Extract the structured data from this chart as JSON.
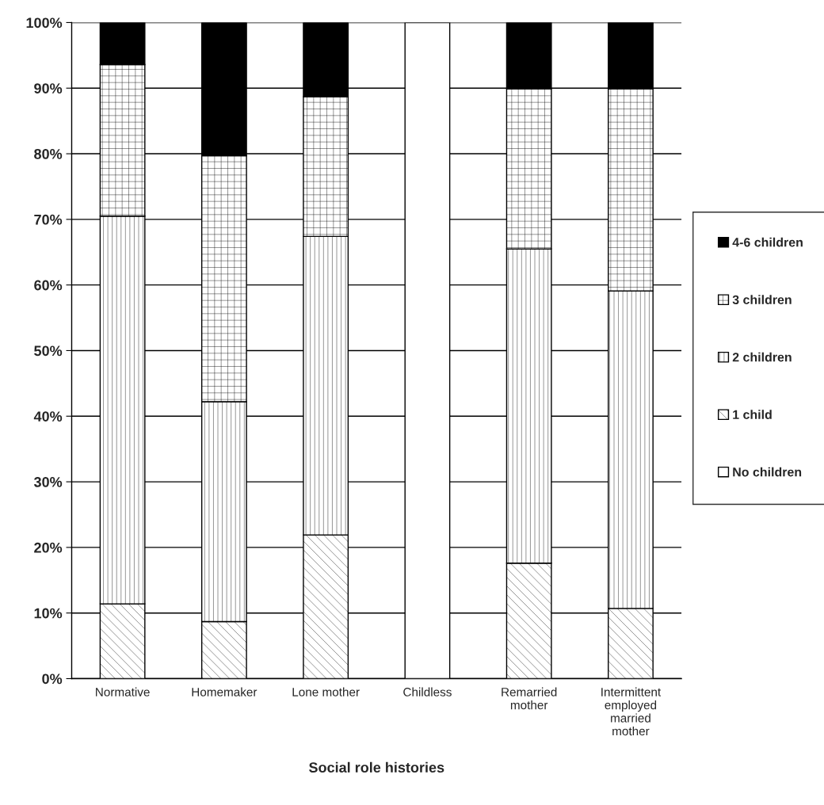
{
  "chart_data": {
    "type": "bar",
    "stacked": true,
    "xlabel": "Social role histories",
    "categories": [
      "Normative",
      "Homemaker",
      "Lone mother",
      "Childless",
      "Remarried\nmother",
      "Intermittent\nemployed\nmarried\nmother"
    ],
    "series": [
      {
        "name": "No children",
        "color": "#ffffff",
        "values": [
          0,
          0,
          0,
          100,
          0,
          0
        ]
      },
      {
        "name": "1 child",
        "color": "#000000",
        "values": [
          11.4,
          8.7,
          21.9,
          0,
          17.6,
          10.7
        ]
      },
      {
        "name": "2 children",
        "color": "#000000",
        "values": [
          59.1,
          33.5,
          45.5,
          0,
          47.9,
          48.4
        ]
      },
      {
        "name": "3 children",
        "color": "#000000",
        "values": [
          23.1,
          37.5,
          21.3,
          0,
          24.4,
          30.8
        ]
      },
      {
        "name": "4-6 children",
        "color": "#000000",
        "values": [
          6.4,
          20.3,
          11.3,
          0,
          10.1,
          10.1
        ]
      }
    ],
    "ylim": [
      0,
      100
    ],
    "yticks": [
      {
        "value": 0,
        "label": "0%"
      },
      {
        "value": 10,
        "label": "10%"
      },
      {
        "value": 20,
        "label": "20%"
      },
      {
        "value": 30,
        "label": "30%"
      },
      {
        "value": 40,
        "label": "40%"
      },
      {
        "value": 50,
        "label": "50%"
      },
      {
        "value": 60,
        "label": "60%"
      },
      {
        "value": 70,
        "label": "70%"
      },
      {
        "value": 80,
        "label": "80%"
      },
      {
        "value": 90,
        "label": "90%"
      },
      {
        "value": 100,
        "label": "100%"
      }
    ],
    "grid": "y",
    "legend": "right"
  }
}
